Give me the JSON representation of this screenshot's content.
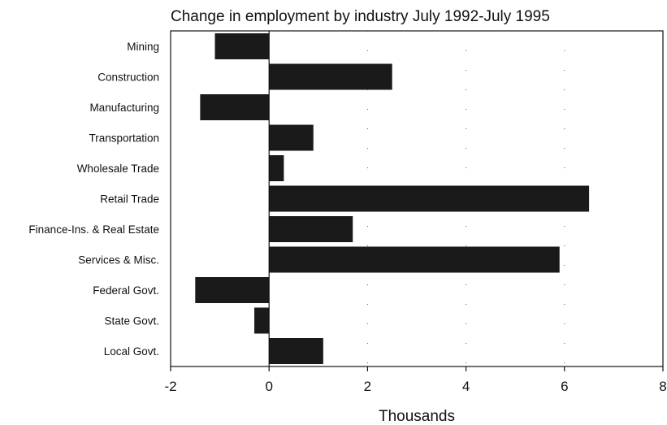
{
  "chart_data": {
    "type": "bar",
    "orientation": "horizontal",
    "title": "Change in employment by industry July 1992-July 1995",
    "xlabel": "Thousands",
    "ylabel": "",
    "categories": [
      "Mining",
      "Construction",
      "Manufacturing",
      "Transportation",
      "Wholesale Trade",
      "Retail Trade",
      "Finance-Ins. & Real Estate",
      "Services & Misc.",
      "Federal Govt.",
      "State Govt.",
      "Local Govt."
    ],
    "values": [
      -1.1,
      2.5,
      -1.4,
      0.9,
      0.3,
      6.5,
      1.7,
      5.9,
      -1.5,
      -0.3,
      1.1
    ],
    "xlim": [
      -2,
      8
    ],
    "xticks": [
      -2,
      0,
      2,
      4,
      6,
      8
    ],
    "grid": "dotted vertical lines at x ticks",
    "bar_color": "#1a1a1a"
  }
}
